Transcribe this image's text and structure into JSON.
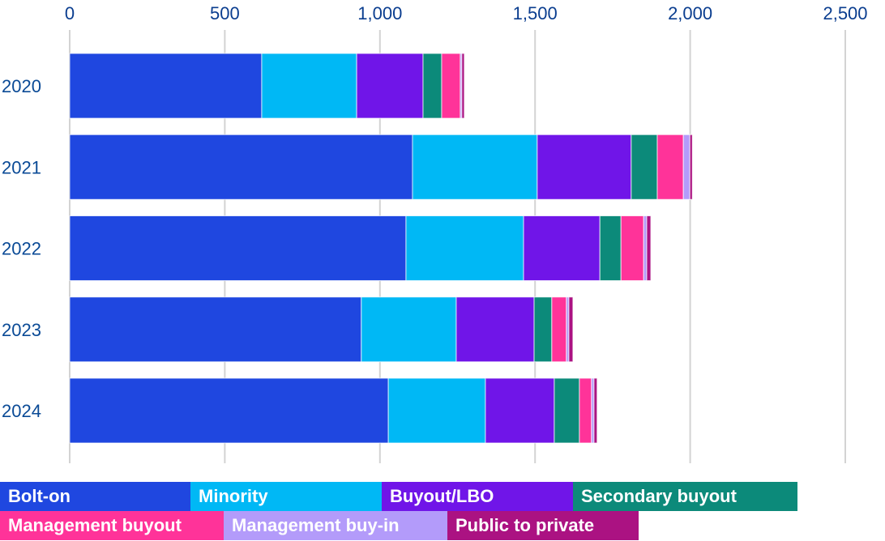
{
  "chart_data": {
    "type": "bar",
    "orientation": "horizontal",
    "stacked": true,
    "title": "",
    "xlabel": "",
    "ylabel": "",
    "xlim": [
      0,
      2500
    ],
    "xticks": [
      0,
      500,
      1000,
      1500,
      2000,
      2500
    ],
    "xtick_labels": [
      "0",
      "500",
      "1,000",
      "1,500",
      "2,000",
      "2,500"
    ],
    "categories": [
      "2020",
      "2021",
      "2022",
      "2023",
      "2024"
    ],
    "grid": true,
    "legend_position": "bottom",
    "series": [
      {
        "name": "Bolt-on",
        "color": "#1f47e0",
        "values": [
          619,
          1105,
          1084,
          940,
          1027
        ]
      },
      {
        "name": "Minority",
        "color": "#00b8f5",
        "values": [
          306,
          402,
          379,
          306,
          313
        ]
      },
      {
        "name": "Buyout/LBO",
        "color": "#7015e8",
        "values": [
          214,
          303,
          246,
          251,
          222
        ]
      },
      {
        "name": "Secondary buyout",
        "color": "#0c8a7a",
        "values": [
          60,
          84,
          68,
          57,
          81
        ]
      },
      {
        "name": "Management buyout",
        "color": "#ff3399",
        "values": [
          60,
          84,
          73,
          47,
          39
        ]
      },
      {
        "name": "Management buy-in",
        "color": "#b39bfa",
        "values": [
          5,
          21,
          10,
          8,
          8
        ]
      },
      {
        "name": "Public to private",
        "color": "#ab1282",
        "values": [
          8,
          8,
          13,
          13,
          10
        ]
      }
    ]
  }
}
